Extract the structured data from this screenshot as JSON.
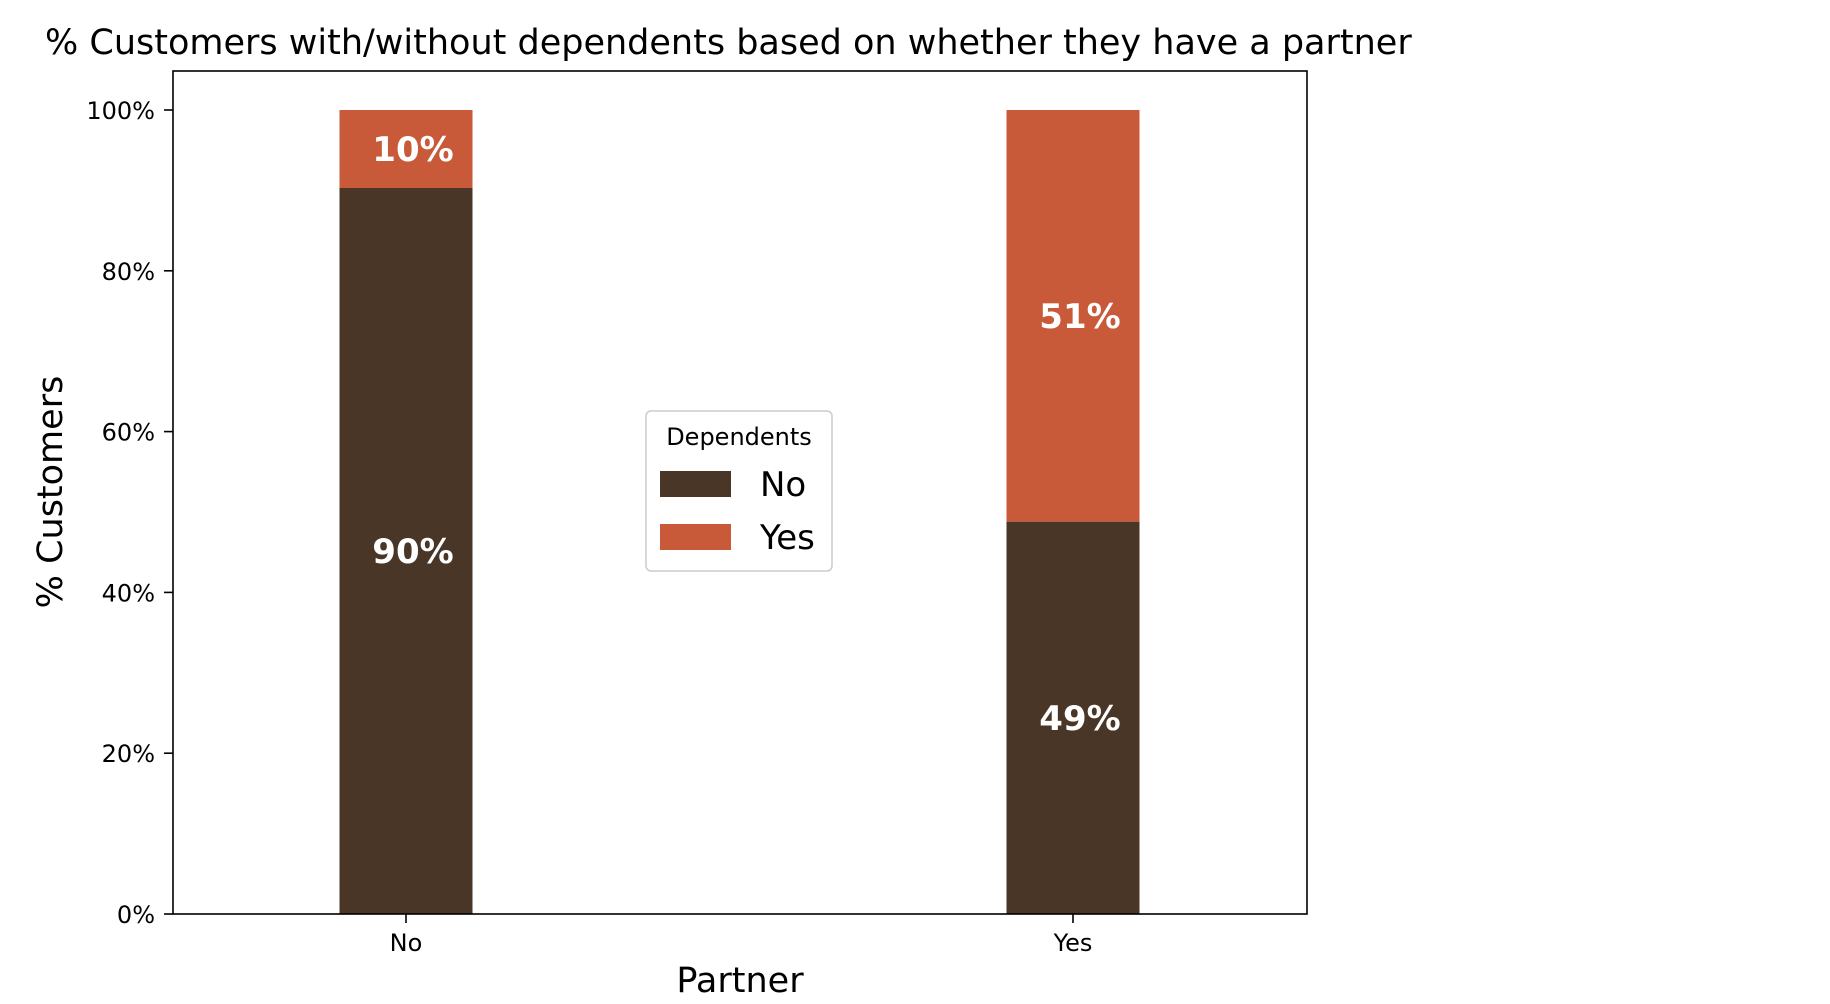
{
  "chart_data": {
    "type": "bar",
    "stacked": true,
    "title": "% Customers with/without dependents based on whether they have a partner",
    "xlabel": "Partner",
    "ylabel": "% Customers",
    "categories": [
      "No",
      "Yes"
    ],
    "ylim": [
      0,
      100
    ],
    "yticks": [
      0,
      20,
      40,
      60,
      80,
      100
    ],
    "ytick_labels": [
      "0%",
      "20%",
      "40%",
      "60%",
      "80%",
      "100%"
    ],
    "grid": false,
    "legend": {
      "title": "Dependents",
      "placement": "center"
    },
    "series": [
      {
        "name": "No",
        "color": "#4a3627",
        "values": [
          90.3,
          48.8
        ],
        "labels": [
          "90%",
          "49%"
        ]
      },
      {
        "name": "Yes",
        "color": "#c95a39",
        "values": [
          9.7,
          51.2
        ],
        "labels": [
          "10%",
          "51%"
        ]
      }
    ]
  }
}
